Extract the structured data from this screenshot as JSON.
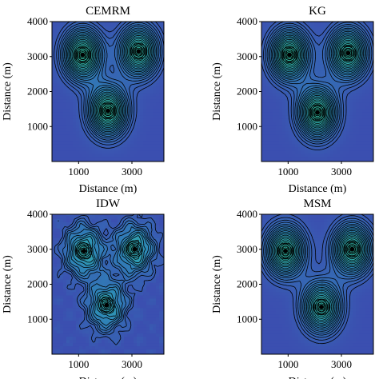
{
  "figure": {
    "panels": [
      {
        "title": "CEMRM",
        "hotspots": [
          [
            1150,
            3050,
            1.0
          ],
          [
            3250,
            3150,
            0.95
          ],
          [
            2100,
            1450,
            1.0
          ]
        ],
        "style": "smooth"
      },
      {
        "title": "KG",
        "hotspots": [
          [
            1050,
            3050,
            1.0
          ],
          [
            3250,
            3100,
            0.95
          ],
          [
            2100,
            1400,
            1.0
          ]
        ],
        "style": "smooth"
      },
      {
        "title": "IDW",
        "hotspots": [
          [
            1200,
            2950,
            0.8
          ],
          [
            3100,
            3000,
            0.8
          ],
          [
            2050,
            1400,
            0.75
          ]
        ],
        "style": "noisy"
      },
      {
        "title": "MSM",
        "hotspots": [
          [
            900,
            2950,
            0.95
          ],
          [
            3400,
            3000,
            0.95
          ],
          [
            2250,
            1350,
            0.9
          ]
        ],
        "style": "smooth"
      }
    ],
    "colors": {
      "low": "#3b4fb0",
      "mid": "#2e88b8",
      "high": "#33c9a0",
      "contour": "#000000"
    }
  },
  "chart_data": [
    {
      "type": "heatmap",
      "title": "CEMRM",
      "xlabel": "Distance (m)",
      "ylabel": "Distance (m)",
      "xlim": [
        0,
        4200
      ],
      "ylim": [
        0,
        4000
      ],
      "xticks": [
        "1000",
        "3000"
      ],
      "yticks": [
        "1000",
        "2000",
        "3000",
        "4000"
      ],
      "contour_lines": true
    },
    {
      "type": "heatmap",
      "title": "KG",
      "xlabel": "Distance (m)",
      "ylabel": "Distance (m)",
      "xlim": [
        0,
        4200
      ],
      "ylim": [
        0,
        4000
      ],
      "xticks": [
        "1000",
        "3000"
      ],
      "yticks": [
        "1000",
        "2000",
        "3000",
        "4000"
      ],
      "contour_lines": true
    },
    {
      "type": "heatmap",
      "title": "IDW",
      "xlabel": "Distance (m)",
      "ylabel": "Distance (m)",
      "xlim": [
        0,
        4200
      ],
      "ylim": [
        0,
        4000
      ],
      "xticks": [
        "1000",
        "3000"
      ],
      "yticks": [
        "1000",
        "2000",
        "3000",
        "4000"
      ],
      "contour_lines": true
    },
    {
      "type": "heatmap",
      "title": "MSM",
      "xlabel": "Distance (m)",
      "ylabel": "Distance (m)",
      "xlim": [
        0,
        4200
      ],
      "ylim": [
        0,
        4000
      ],
      "xticks": [
        "1000",
        "3000"
      ],
      "yticks": [
        "1000",
        "2000",
        "3000",
        "4000"
      ],
      "contour_lines": true
    }
  ]
}
